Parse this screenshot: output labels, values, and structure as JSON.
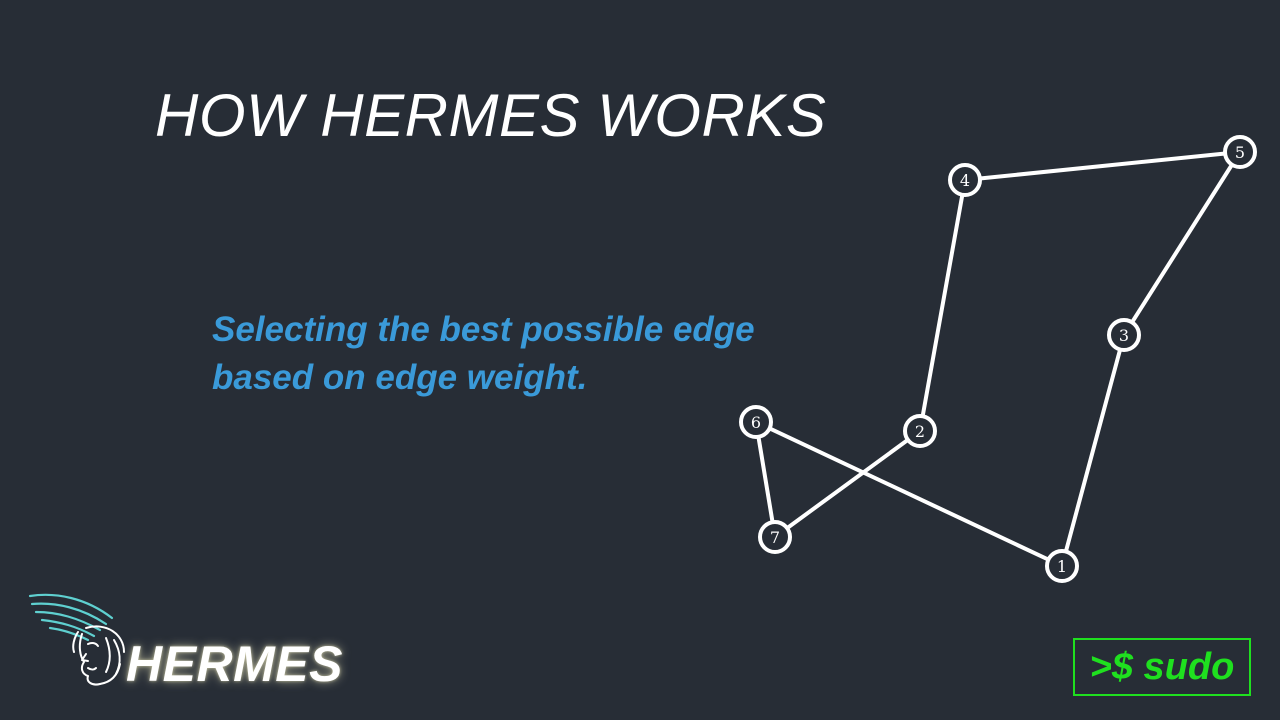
{
  "slide": {
    "title": "HOW HERMES WORKS",
    "subtitle_lines": [
      "Selecting the best possible edge",
      "based on edge weight."
    ],
    "accent_color": "#3a9ad9",
    "background_color": "#272d36"
  },
  "graph": {
    "nodes": [
      {
        "label": "1"
      },
      {
        "label": "2"
      },
      {
        "label": "3"
      },
      {
        "label": "4"
      },
      {
        "label": "5"
      },
      {
        "label": "6"
      },
      {
        "label": "7"
      }
    ],
    "edges": [
      {
        "from": "6",
        "to": "1"
      },
      {
        "from": "1",
        "to": "3"
      },
      {
        "from": "3",
        "to": "5"
      },
      {
        "from": "5",
        "to": "4"
      },
      {
        "from": "4",
        "to": "2"
      },
      {
        "from": "2",
        "to": "7"
      },
      {
        "from": "7",
        "to": "6"
      }
    ]
  },
  "branding": {
    "logo_icon": "hermes-winged-helmet-icon",
    "name": "HERMES",
    "logo_color": "#5fd0d0"
  },
  "badge": {
    "text": ">$ sudo",
    "color": "#1fe01f"
  }
}
